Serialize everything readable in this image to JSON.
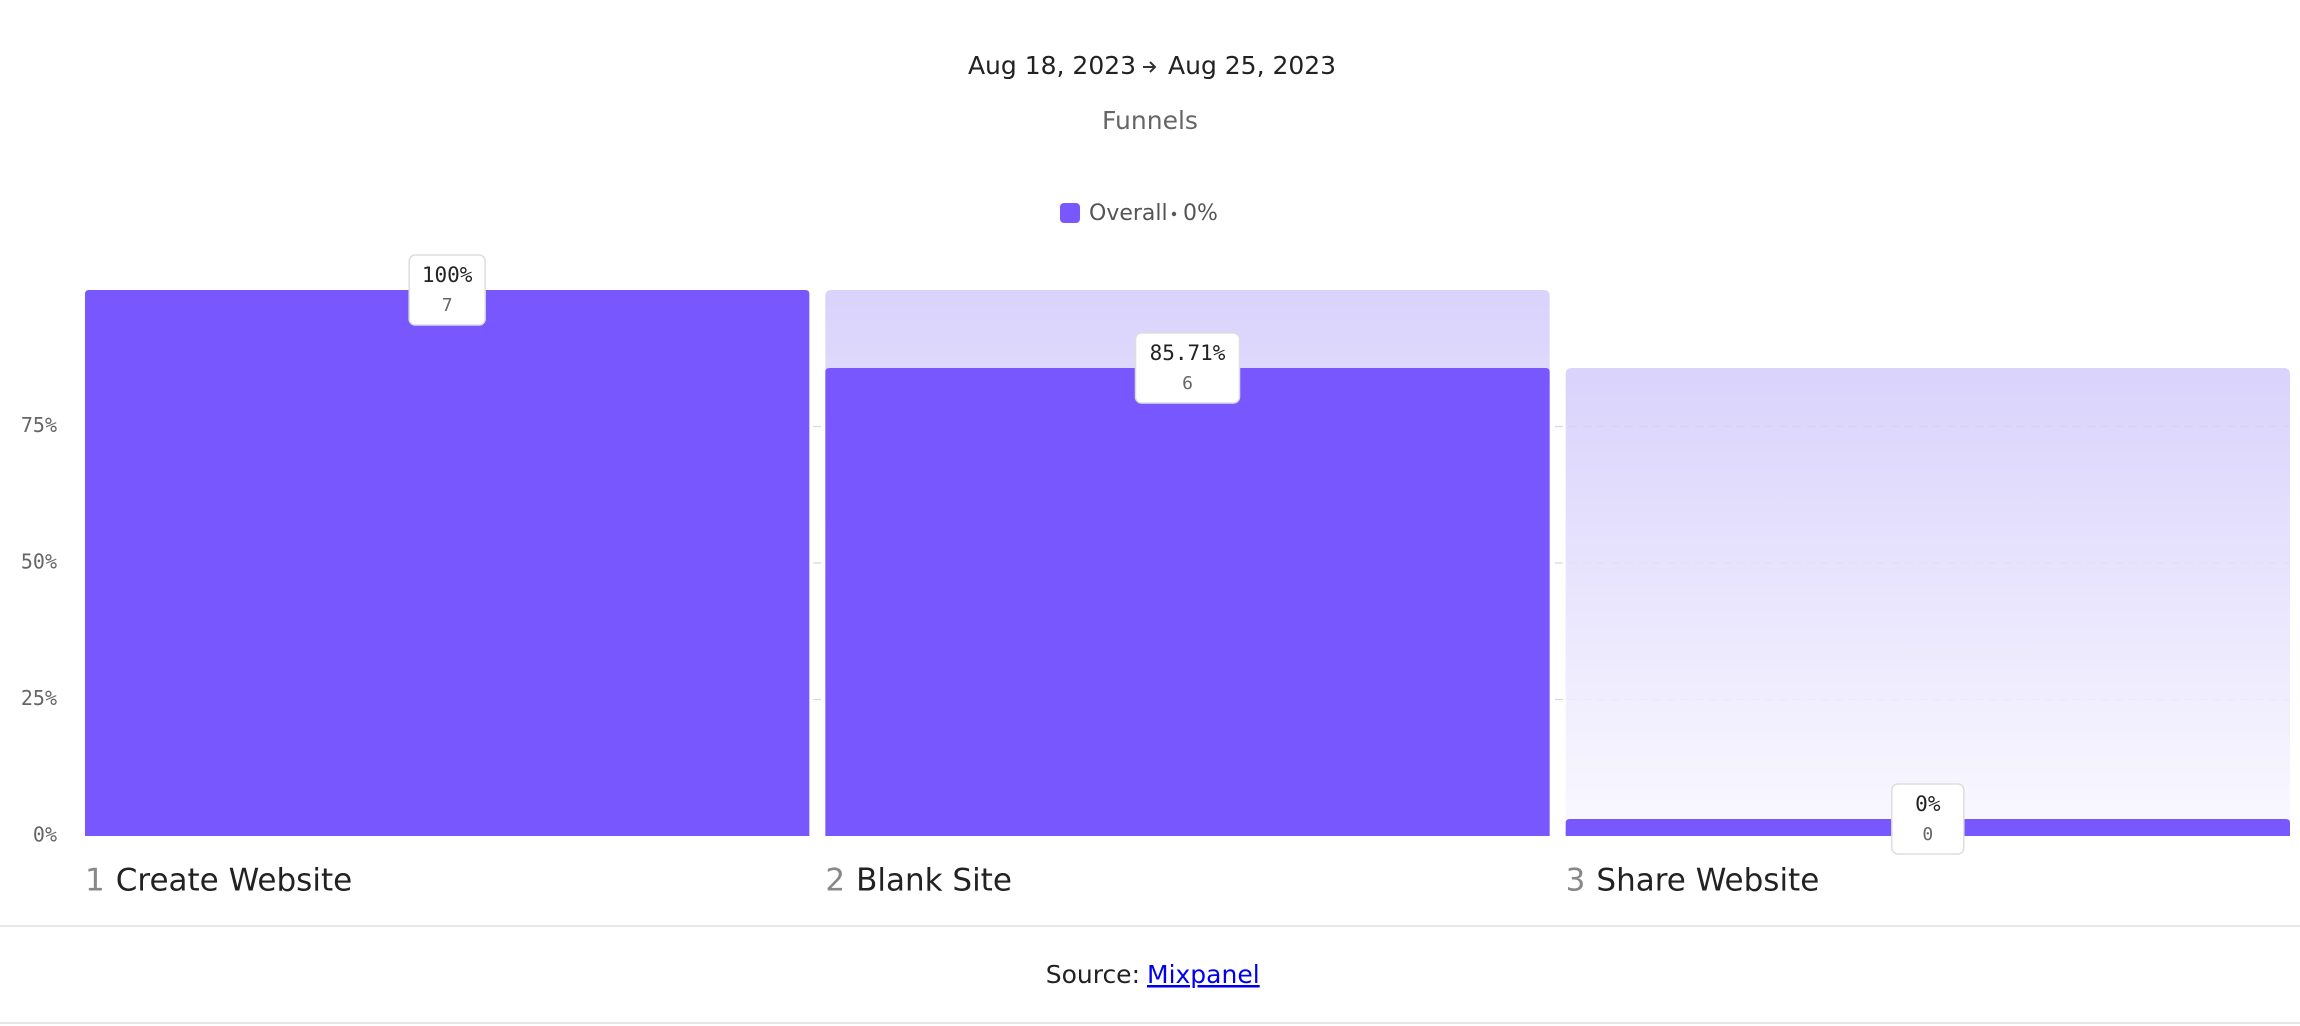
{
  "chart_data": {
    "type": "funnel",
    "date_range": [
      "Aug 18, 2023",
      "Aug 25, 2023"
    ],
    "subtitle": "Funnels",
    "series_name": "Overall",
    "overall_conversion": {
      "value": 0,
      "label": "0%"
    },
    "color": "#7857ff",
    "step_numbers": [
      1,
      2,
      3
    ],
    "categories": [
      "Create Website",
      "Blank Site",
      "Share Website"
    ],
    "values": [
      100,
      85.71,
      0
    ],
    "value_labels": [
      "100%",
      "85.71%",
      "0%"
    ],
    "counts": [
      7,
      6,
      0
    ],
    "ylim": [
      0,
      100
    ],
    "yticks": [
      {
        "value": 0,
        "label": "0%"
      },
      {
        "value": 25,
        "label": "25%"
      },
      {
        "value": 50,
        "label": "50%"
      },
      {
        "value": 75,
        "label": "75%"
      }
    ],
    "grid": true,
    "source_label": "Source:",
    "source_link": "Mixpanel"
  }
}
